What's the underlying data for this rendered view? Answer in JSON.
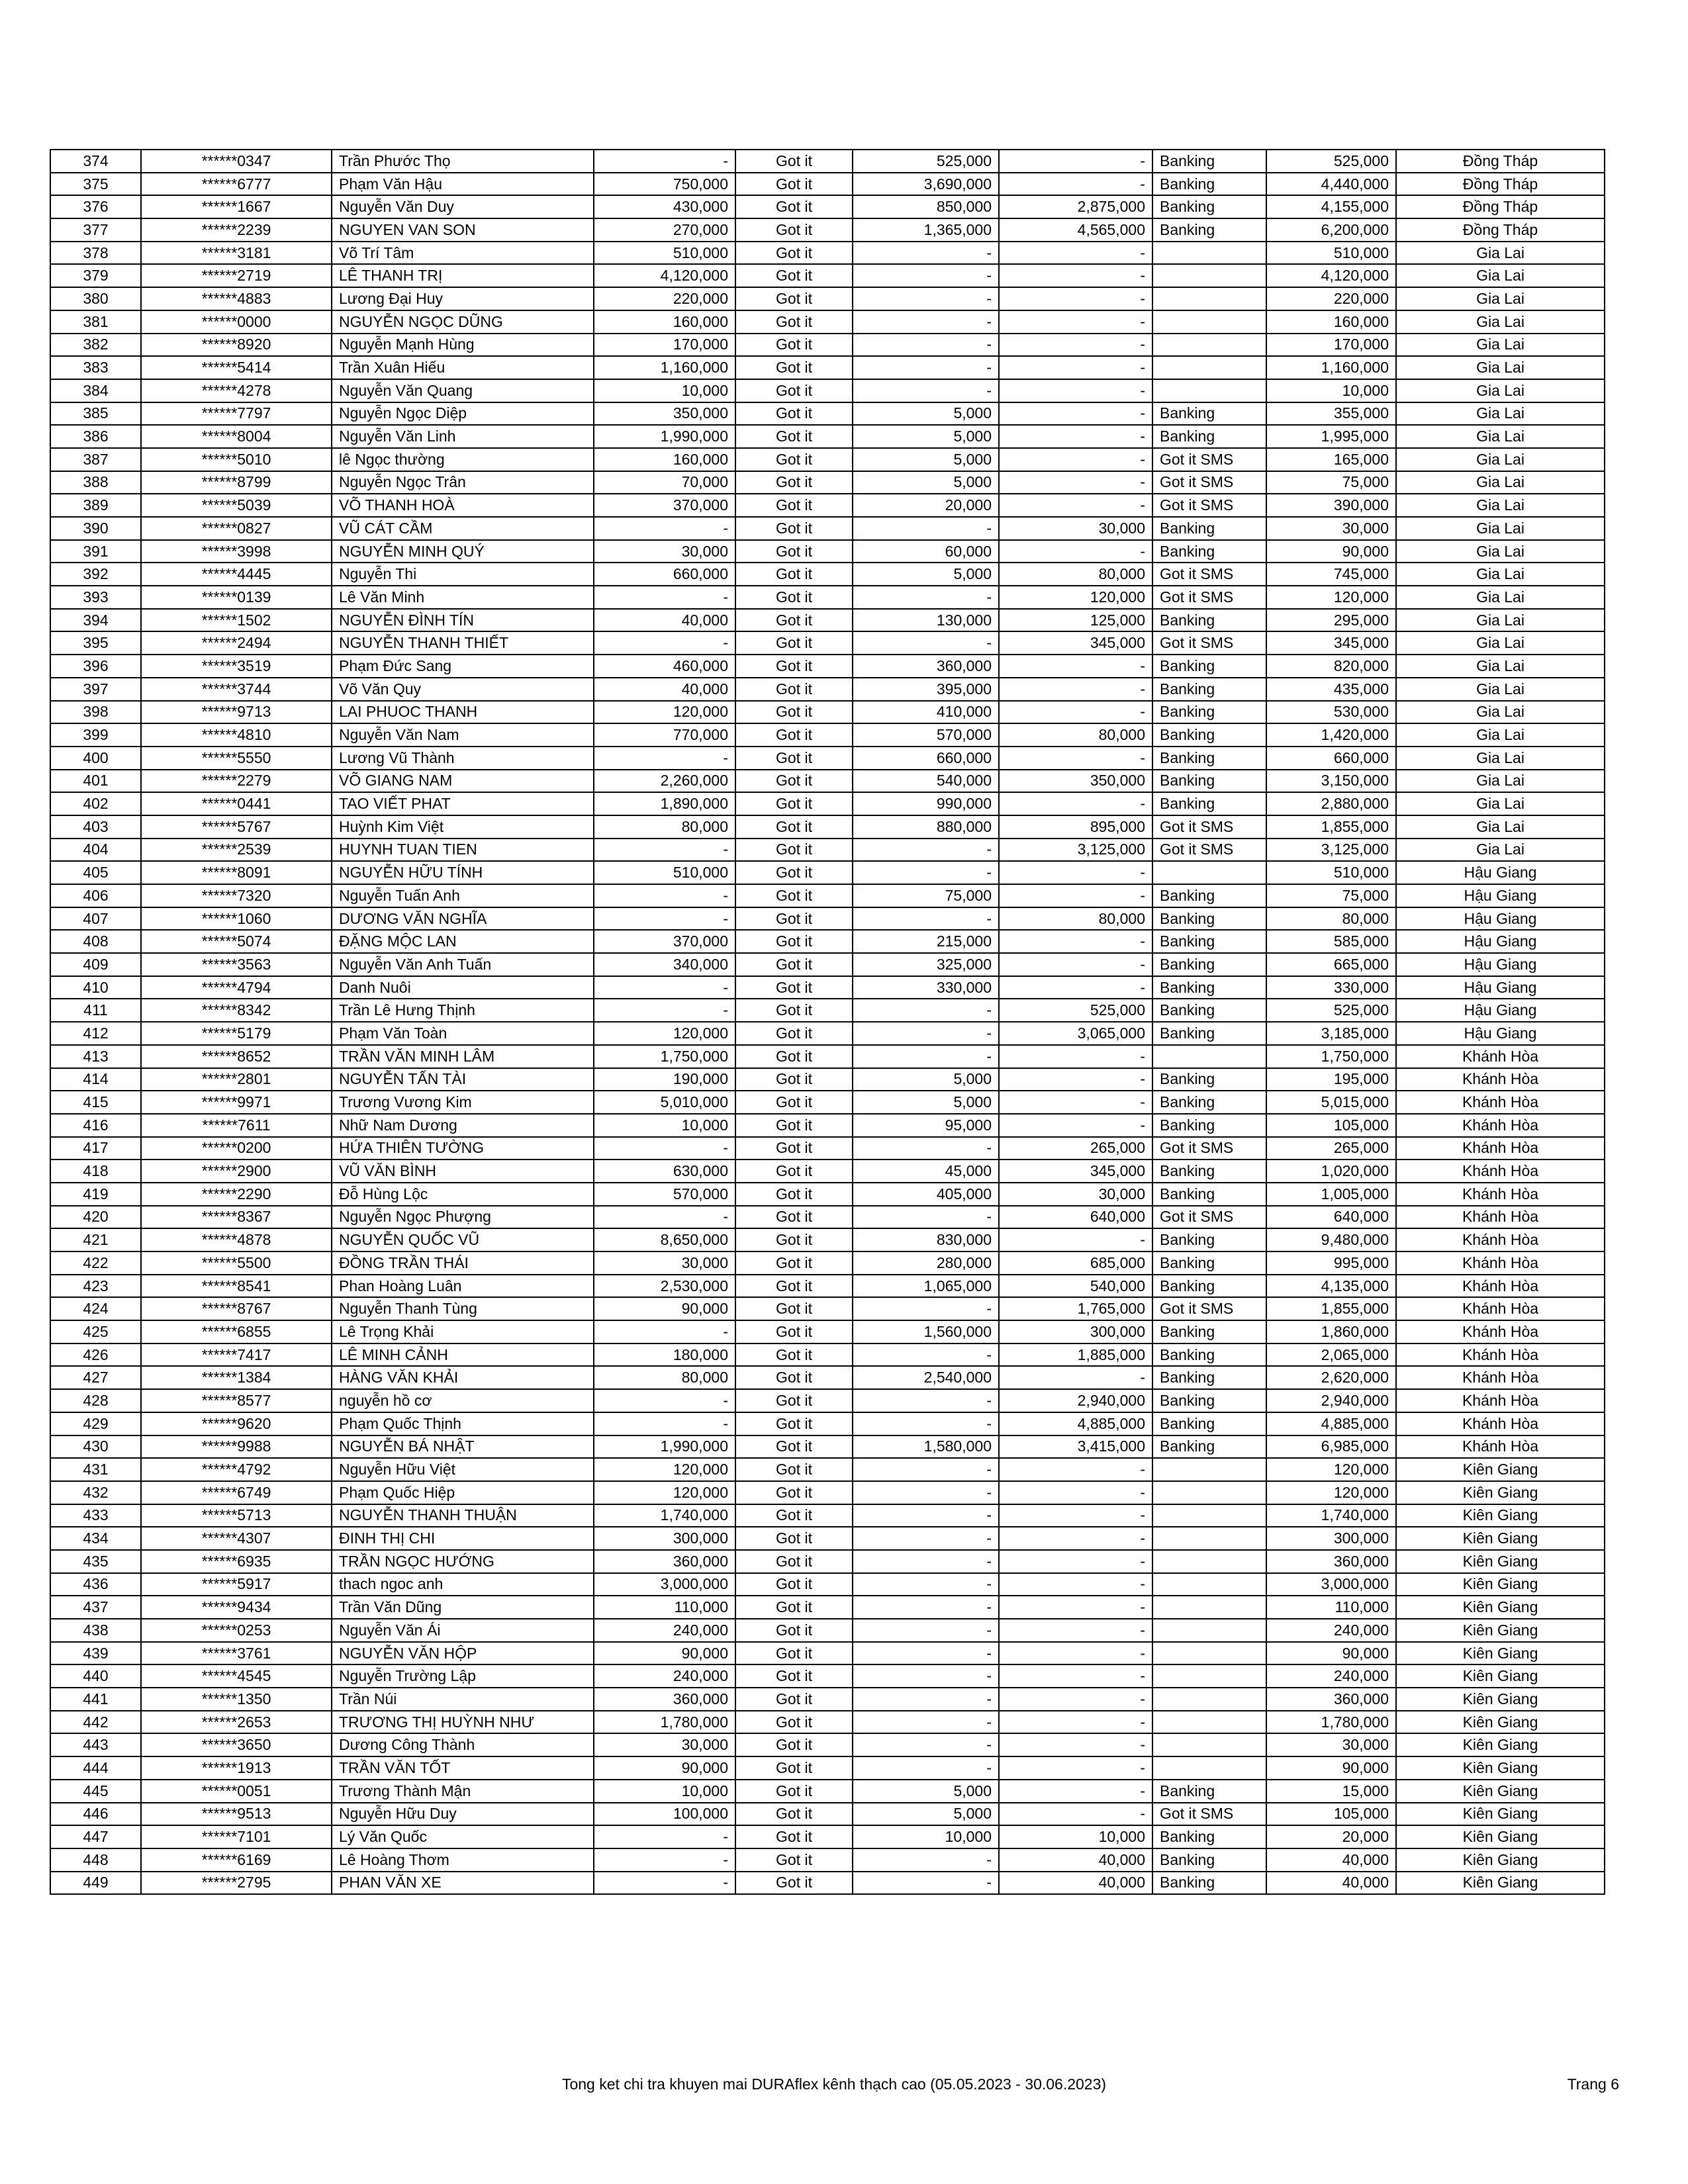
{
  "table": {
    "rows": [
      [
        "374",
        "******0347",
        "Trần Phước Thọ",
        "-",
        "Got it",
        "525,000",
        "-",
        "Banking",
        "525,000",
        "Đồng Tháp"
      ],
      [
        "375",
        "******6777",
        "Phạm Văn Hậu",
        "750,000",
        "Got it",
        "3,690,000",
        "-",
        "Banking",
        "4,440,000",
        "Đồng Tháp"
      ],
      [
        "376",
        "******1667",
        "Nguyễn Văn Duy",
        "430,000",
        "Got it",
        "850,000",
        "2,875,000",
        "Banking",
        "4,155,000",
        "Đồng Tháp"
      ],
      [
        "377",
        "******2239",
        "NGUYEN VAN SON",
        "270,000",
        "Got it",
        "1,365,000",
        "4,565,000",
        "Banking",
        "6,200,000",
        "Đồng Tháp"
      ],
      [
        "378",
        "******3181",
        "Võ Trí Tâm",
        "510,000",
        "Got it",
        "-",
        "-",
        "",
        "510,000",
        "Gia Lai"
      ],
      [
        "379",
        "******2719",
        "LÊ THANH TRỊ",
        "4,120,000",
        "Got it",
        "-",
        "-",
        "",
        "4,120,000",
        "Gia Lai"
      ],
      [
        "380",
        "******4883",
        "Lương Đại Huy",
        "220,000",
        "Got it",
        "-",
        "-",
        "",
        "220,000",
        "Gia Lai"
      ],
      [
        "381",
        "******0000",
        "NGUYỄN NGỌC DŨNG",
        "160,000",
        "Got it",
        "-",
        "-",
        "",
        "160,000",
        "Gia Lai"
      ],
      [
        "382",
        "******8920",
        "Nguyễn Mạnh Hùng",
        "170,000",
        "Got it",
        "-",
        "-",
        "",
        "170,000",
        "Gia Lai"
      ],
      [
        "383",
        "******5414",
        "Trần Xuân Hiếu",
        "1,160,000",
        "Got it",
        "-",
        "-",
        "",
        "1,160,000",
        "Gia Lai"
      ],
      [
        "384",
        "******4278",
        "Nguyễn Văn Quang",
        "10,000",
        "Got it",
        "-",
        "-",
        "",
        "10,000",
        "Gia Lai"
      ],
      [
        "385",
        "******7797",
        "Nguyễn Ngọc Diệp",
        "350,000",
        "Got it",
        "5,000",
        "-",
        "Banking",
        "355,000",
        "Gia Lai"
      ],
      [
        "386",
        "******8004",
        "Nguyễn Văn Linh",
        "1,990,000",
        "Got it",
        "5,000",
        "-",
        "Banking",
        "1,995,000",
        "Gia Lai"
      ],
      [
        "387",
        "******5010",
        "lê Ngọc thường",
        "160,000",
        "Got it",
        "5,000",
        "-",
        "Got it SMS",
        "165,000",
        "Gia Lai"
      ],
      [
        "388",
        "******8799",
        "Nguyễn Ngọc Trân",
        "70,000",
        "Got it",
        "5,000",
        "-",
        "Got it SMS",
        "75,000",
        "Gia Lai"
      ],
      [
        "389",
        "******5039",
        "VÕ THANH HOÀ",
        "370,000",
        "Got it",
        "20,000",
        "-",
        "Got it SMS",
        "390,000",
        "Gia Lai"
      ],
      [
        "390",
        "******0827",
        "VŨ CÁT CẦM",
        "-",
        "Got it",
        "-",
        "30,000",
        "Banking",
        "30,000",
        "Gia Lai"
      ],
      [
        "391",
        "******3998",
        "NGUYỄN MINH QUÝ",
        "30,000",
        "Got it",
        "60,000",
        "-",
        "Banking",
        "90,000",
        "Gia Lai"
      ],
      [
        "392",
        "******4445",
        "Nguyễn Thi",
        "660,000",
        "Got it",
        "5,000",
        "80,000",
        "Got it SMS",
        "745,000",
        "Gia Lai"
      ],
      [
        "393",
        "******0139",
        "Lê Văn Minh",
        "-",
        "Got it",
        "-",
        "120,000",
        "Got it SMS",
        "120,000",
        "Gia Lai"
      ],
      [
        "394",
        "******1502",
        "NGUYỄN ĐÌNH TÍN",
        "40,000",
        "Got it",
        "130,000",
        "125,000",
        "Banking",
        "295,000",
        "Gia Lai"
      ],
      [
        "395",
        "******2494",
        "NGUYỄN THANH THIẾT",
        "-",
        "Got it",
        "-",
        "345,000",
        "Got it SMS",
        "345,000",
        "Gia Lai"
      ],
      [
        "396",
        "******3519",
        "Phạm Đức Sang",
        "460,000",
        "Got it",
        "360,000",
        "-",
        "Banking",
        "820,000",
        "Gia Lai"
      ],
      [
        "397",
        "******3744",
        "Võ Văn Quy",
        "40,000",
        "Got it",
        "395,000",
        "-",
        "Banking",
        "435,000",
        "Gia Lai"
      ],
      [
        "398",
        "******9713",
        "LAI PHUOC THANH",
        "120,000",
        "Got it",
        "410,000",
        "-",
        "Banking",
        "530,000",
        "Gia Lai"
      ],
      [
        "399",
        "******4810",
        "Nguyễn Văn Nam",
        "770,000",
        "Got it",
        "570,000",
        "80,000",
        "Banking",
        "1,420,000",
        "Gia Lai"
      ],
      [
        "400",
        "******5550",
        "Lương Vũ Thành",
        "-",
        "Got it",
        "660,000",
        "-",
        "Banking",
        "660,000",
        "Gia Lai"
      ],
      [
        "401",
        "******2279",
        "VÕ GIANG NAM",
        "2,260,000",
        "Got it",
        "540,000",
        "350,000",
        "Banking",
        "3,150,000",
        "Gia Lai"
      ],
      [
        "402",
        "******0441",
        "TAO VIẾT PHAT",
        "1,890,000",
        "Got it",
        "990,000",
        "-",
        "Banking",
        "2,880,000",
        "Gia Lai"
      ],
      [
        "403",
        "******5767",
        "Huỳnh Kim Việt",
        "80,000",
        "Got it",
        "880,000",
        "895,000",
        "Got it SMS",
        "1,855,000",
        "Gia Lai"
      ],
      [
        "404",
        "******2539",
        "HUYNH TUAN TIEN",
        "-",
        "Got it",
        "-",
        "3,125,000",
        "Got it SMS",
        "3,125,000",
        "Gia Lai"
      ],
      [
        "405",
        "******8091",
        "NGUYỄN HỮU TÍNH",
        "510,000",
        "Got it",
        "-",
        "-",
        "",
        "510,000",
        "Hậu Giang"
      ],
      [
        "406",
        "******7320",
        "Nguyễn  Tuấn Anh",
        "-",
        "Got it",
        "75,000",
        "-",
        "Banking",
        "75,000",
        "Hậu Giang"
      ],
      [
        "407",
        "******1060",
        "DƯƠNG VĂN NGHĨA",
        "-",
        "Got it",
        "-",
        "80,000",
        "Banking",
        "80,000",
        "Hậu Giang"
      ],
      [
        "408",
        "******5074",
        "ĐẶNG MỘC LAN",
        "370,000",
        "Got it",
        "215,000",
        "-",
        "Banking",
        "585,000",
        "Hậu Giang"
      ],
      [
        "409",
        "******3563",
        "Nguyễn Văn Anh Tuấn",
        "340,000",
        "Got it",
        "325,000",
        "-",
        "Banking",
        "665,000",
        "Hậu Giang"
      ],
      [
        "410",
        "******4794",
        "Danh Nuôi",
        "-",
        "Got it",
        "330,000",
        "-",
        "Banking",
        "330,000",
        "Hậu Giang"
      ],
      [
        "411",
        "******8342",
        "Trần Lê Hưng Thịnh",
        "-",
        "Got it",
        "-",
        "525,000",
        "Banking",
        "525,000",
        "Hậu Giang"
      ],
      [
        "412",
        "******5179",
        "Phạm Văn Toàn",
        "120,000",
        "Got it",
        "-",
        "3,065,000",
        "Banking",
        "3,185,000",
        "Hậu Giang"
      ],
      [
        "413",
        "******8652",
        "TRẦN VĂN MINH LÂM",
        "1,750,000",
        "Got it",
        "-",
        "-",
        "",
        "1,750,000",
        "Khánh Hòa"
      ],
      [
        "414",
        "******2801",
        "NGUYỄN TẤN TÀI",
        "190,000",
        "Got it",
        "5,000",
        "-",
        "Banking",
        "195,000",
        "Khánh Hòa"
      ],
      [
        "415",
        "******9971",
        "Trương Vương Kim",
        "5,010,000",
        "Got it",
        "5,000",
        "-",
        "Banking",
        "5,015,000",
        "Khánh Hòa"
      ],
      [
        "416",
        "******7611",
        "Nhữ Nam Dương",
        "10,000",
        "Got it",
        "95,000",
        "-",
        "Banking",
        "105,000",
        "Khánh Hòa"
      ],
      [
        "417",
        "******0200",
        "HỨA THIÊN TƯỜNG",
        "-",
        "Got it",
        "-",
        "265,000",
        "Got it SMS",
        "265,000",
        "Khánh Hòa"
      ],
      [
        "418",
        "******2900",
        "VŨ VĂN BÌNH",
        "630,000",
        "Got it",
        "45,000",
        "345,000",
        "Banking",
        "1,020,000",
        "Khánh Hòa"
      ],
      [
        "419",
        "******2290",
        "Đỗ Hùng Lộc",
        "570,000",
        "Got it",
        "405,000",
        "30,000",
        "Banking",
        "1,005,000",
        "Khánh Hòa"
      ],
      [
        "420",
        "******8367",
        "Nguyễn Ngọc Phượng",
        "-",
        "Got it",
        "-",
        "640,000",
        "Got it SMS",
        "640,000",
        "Khánh Hòa"
      ],
      [
        "421",
        "******4878",
        "NGUYỄN QUỐC VŨ",
        "8,650,000",
        "Got it",
        "830,000",
        "-",
        "Banking",
        "9,480,000",
        "Khánh Hòa"
      ],
      [
        "422",
        "******5500",
        "ĐỒNG TRẦN THÁI",
        "30,000",
        "Got it",
        "280,000",
        "685,000",
        "Banking",
        "995,000",
        "Khánh Hòa"
      ],
      [
        "423",
        "******8541",
        "Phan Hoàng Luân",
        "2,530,000",
        "Got it",
        "1,065,000",
        "540,000",
        "Banking",
        "4,135,000",
        "Khánh Hòa"
      ],
      [
        "424",
        "******8767",
        "Nguyễn Thanh Tùng",
        "90,000",
        "Got it",
        "-",
        "1,765,000",
        "Got it SMS",
        "1,855,000",
        "Khánh Hòa"
      ],
      [
        "425",
        "******6855",
        "Lê Trọng Khải",
        "-",
        "Got it",
        "1,560,000",
        "300,000",
        "Banking",
        "1,860,000",
        "Khánh Hòa"
      ],
      [
        "426",
        "******7417",
        "LÊ MINH CẢNH",
        "180,000",
        "Got it",
        "-",
        "1,885,000",
        "Banking",
        "2,065,000",
        "Khánh Hòa"
      ],
      [
        "427",
        "******1384",
        "HÀNG VĂN KHẢI",
        "80,000",
        "Got it",
        "2,540,000",
        "-",
        "Banking",
        "2,620,000",
        "Khánh Hòa"
      ],
      [
        "428",
        "******8577",
        "nguyễn hồ cơ",
        "-",
        "Got it",
        "-",
        "2,940,000",
        "Banking",
        "2,940,000",
        "Khánh Hòa"
      ],
      [
        "429",
        "******9620",
        "Phạm Quốc Thịnh",
        "-",
        "Got it",
        "-",
        "4,885,000",
        "Banking",
        "4,885,000",
        "Khánh Hòa"
      ],
      [
        "430",
        "******9988",
        "NGUYỄN BÁ NHẬT",
        "1,990,000",
        "Got it",
        "1,580,000",
        "3,415,000",
        "Banking",
        "6,985,000",
        "Khánh Hòa"
      ],
      [
        "431",
        "******4792",
        "Nguyễn Hữu Việt",
        "120,000",
        "Got it",
        "-",
        "-",
        "",
        "120,000",
        "Kiên Giang"
      ],
      [
        "432",
        "******6749",
        "Phạm Quốc Hiệp",
        "120,000",
        "Got it",
        "-",
        "-",
        "",
        "120,000",
        "Kiên Giang"
      ],
      [
        "433",
        "******5713",
        "NGUYỄN THANH THUẬN",
        "1,740,000",
        "Got it",
        "-",
        "-",
        "",
        "1,740,000",
        "Kiên Giang"
      ],
      [
        "434",
        "******4307",
        "ĐINH THỊ CHI",
        "300,000",
        "Got it",
        "-",
        "-",
        "",
        "300,000",
        "Kiên Giang"
      ],
      [
        "435",
        "******6935",
        "TRẦN NGỌC HƯỚNG",
        "360,000",
        "Got it",
        "-",
        "-",
        "",
        "360,000",
        "Kiên Giang"
      ],
      [
        "436",
        "******5917",
        "thach ngoc anh",
        "3,000,000",
        "Got it",
        "-",
        "-",
        "",
        "3,000,000",
        "Kiên Giang"
      ],
      [
        "437",
        "******9434",
        "Trần Văn Dũng",
        "110,000",
        "Got it",
        "-",
        "-",
        "",
        "110,000",
        "Kiên Giang"
      ],
      [
        "438",
        "******0253",
        "Nguyễn Văn Ái",
        "240,000",
        "Got it",
        "-",
        "-",
        "",
        "240,000",
        "Kiên Giang"
      ],
      [
        "439",
        "******3761",
        "NGUYỄN VĂN HỘP",
        "90,000",
        "Got it",
        "-",
        "-",
        "",
        "90,000",
        "Kiên Giang"
      ],
      [
        "440",
        "******4545",
        "Nguyễn Trường Lập",
        "240,000",
        "Got it",
        "-",
        "-",
        "",
        "240,000",
        "Kiên Giang"
      ],
      [
        "441",
        "******1350",
        "Trần Núi",
        "360,000",
        "Got it",
        "-",
        "-",
        "",
        "360,000",
        "Kiên Giang"
      ],
      [
        "442",
        "******2653",
        "TRƯƠNG THỊ HUỲNH NHƯ",
        "1,780,000",
        "Got it",
        "-",
        "-",
        "",
        "1,780,000",
        "Kiên Giang"
      ],
      [
        "443",
        "******3650",
        "Dương Công Thành",
        "30,000",
        "Got it",
        "-",
        "-",
        "",
        "30,000",
        "Kiên Giang"
      ],
      [
        "444",
        "******1913",
        "TRẦN VĂN TỐT",
        "90,000",
        "Got it",
        "-",
        "-",
        "",
        "90,000",
        "Kiên Giang"
      ],
      [
        "445",
        "******0051",
        "Trương Thành Mận",
        "10,000",
        "Got it",
        "5,000",
        "-",
        "Banking",
        "15,000",
        "Kiên Giang"
      ],
      [
        "446",
        "******9513",
        "Nguyễn Hữu Duy",
        "100,000",
        "Got it",
        "5,000",
        "-",
        "Got it SMS",
        "105,000",
        "Kiên Giang"
      ],
      [
        "447",
        "******7101",
        "Lý Văn Quốc",
        "-",
        "Got it",
        "10,000",
        "10,000",
        "Banking",
        "20,000",
        "Kiên Giang"
      ],
      [
        "448",
        "******6169",
        "Lê Hoàng Thơm",
        "-",
        "Got it",
        "-",
        "40,000",
        "Banking",
        "40,000",
        "Kiên Giang"
      ],
      [
        "449",
        "******2795",
        "PHAN VĂN XE",
        "-",
        "Got it",
        "-",
        "40,000",
        "Banking",
        "40,000",
        "Kiên Giang"
      ]
    ]
  },
  "footer": {
    "title": "Tong ket chi tra khuyen mai DURAflex kênh thạch cao (05.05.2023 - 30.06.2023)",
    "page": "Trang 6"
  }
}
